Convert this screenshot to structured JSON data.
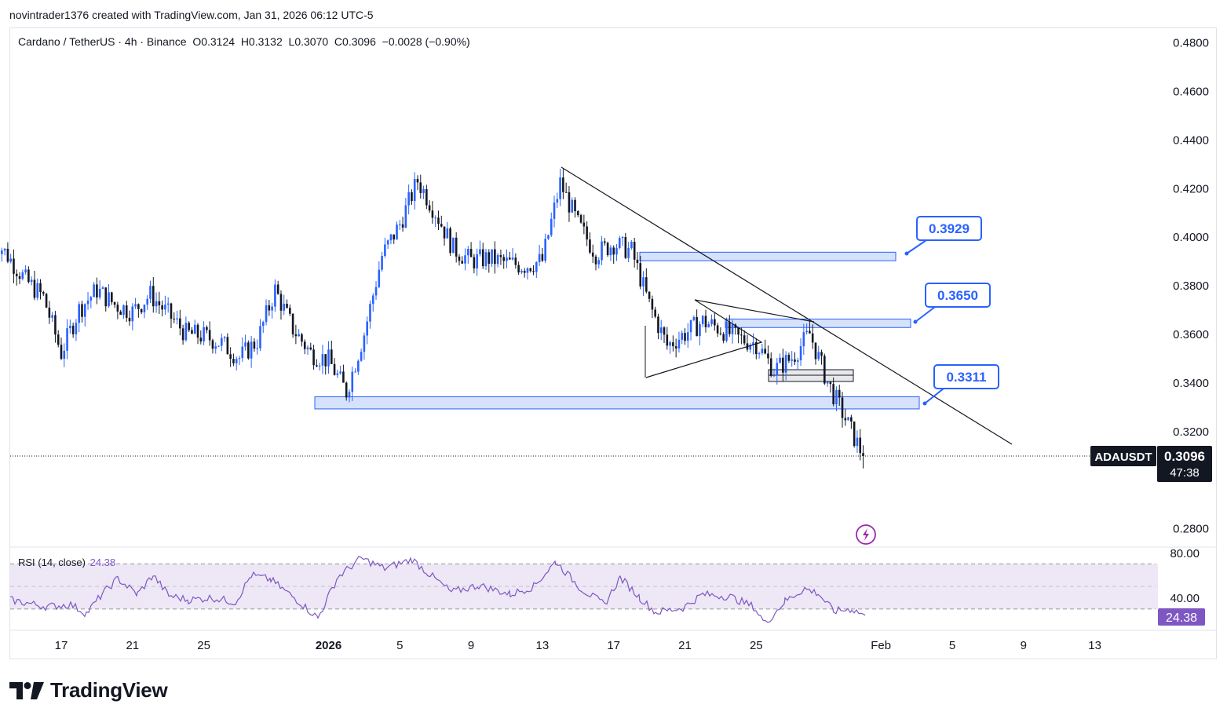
{
  "header": {
    "attribution": "novintrader1376 created with TradingView.com, Jan 31, 2026 06:12 UTC-5"
  },
  "legend": {
    "symbol_line": "Cardano / TetherUS · 4h · Binance",
    "open": "O0.3124",
    "high": "H0.3132",
    "low": "L0.3070",
    "close": "C0.3096",
    "change": "−0.0028 (−0.90%)"
  },
  "rsi_legend": {
    "label": "RSI (14, close)",
    "value": "24.38"
  },
  "price_axis": {
    "ticks": [
      "0.4800",
      "0.4600",
      "0.4400",
      "0.4200",
      "0.4000",
      "0.3800",
      "0.3600",
      "0.3400",
      "0.3200",
      "0.2800"
    ]
  },
  "rsi_axis": {
    "ticks": [
      "80.00",
      "40.00"
    ]
  },
  "time_axis": {
    "ticks": [
      "17",
      "21",
      "25",
      "2026",
      "5",
      "9",
      "13",
      "17",
      "21",
      "25",
      "Feb",
      "5",
      "9",
      "13"
    ]
  },
  "price_tag": {
    "symbol": "ADAUSDT",
    "price": "0.3096",
    "countdown": "47:38"
  },
  "rsi_tag": "24.38",
  "callouts": [
    "0.3929",
    "0.3650",
    "0.3311"
  ],
  "colors": {
    "up": "#2962ff",
    "down": "#131722",
    "zone_fill": "#d6e2fb",
    "zone_border": "#2962ff",
    "rsi_line": "#7e57c2",
    "rsi_band": "#ede7f6"
  },
  "chart_data": {
    "type": "candlestick",
    "symbol": "ADAUSDT",
    "interval": "4h",
    "x_start": "2025-12-13",
    "x_end": "2026-02-13",
    "ylim": [
      0.27,
      0.485
    ],
    "close_series": [
      [
        "2025-12-13",
        0.401
      ],
      [
        "2025-12-14",
        0.392
      ],
      [
        "2025-12-15",
        0.382
      ],
      [
        "2025-12-16",
        0.375
      ],
      [
        "2025-12-17",
        0.352
      ],
      [
        "2025-12-18",
        0.37
      ],
      [
        "2025-12-19",
        0.378
      ],
      [
        "2025-12-20",
        0.372
      ],
      [
        "2025-12-21",
        0.369
      ],
      [
        "2025-12-22",
        0.376
      ],
      [
        "2025-12-23",
        0.368
      ],
      [
        "2025-12-24",
        0.36
      ],
      [
        "2025-12-25",
        0.359
      ],
      [
        "2025-12-26",
        0.356
      ],
      [
        "2025-12-27",
        0.35
      ],
      [
        "2025-12-28",
        0.357
      ],
      [
        "2025-12-29",
        0.378
      ],
      [
        "2025-12-30",
        0.362
      ],
      [
        "2025-12-31",
        0.352
      ],
      [
        "2026-01-01",
        0.349
      ],
      [
        "2026-01-02",
        0.336
      ],
      [
        "2026-01-03",
        0.36
      ],
      [
        "2026-01-04",
        0.392
      ],
      [
        "2026-01-05",
        0.405
      ],
      [
        "2026-01-06",
        0.423
      ],
      [
        "2026-01-07",
        0.41
      ],
      [
        "2026-01-08",
        0.395
      ],
      [
        "2026-01-09",
        0.39
      ],
      [
        "2026-01-10",
        0.391
      ],
      [
        "2026-01-11",
        0.389
      ],
      [
        "2026-01-12",
        0.388
      ],
      [
        "2026-01-13",
        0.39
      ],
      [
        "2026-01-14",
        0.422
      ],
      [
        "2026-01-15",
        0.405
      ],
      [
        "2026-01-16",
        0.393
      ],
      [
        "2026-01-17",
        0.397
      ],
      [
        "2026-01-18",
        0.394
      ],
      [
        "2026-01-19",
        0.372
      ],
      [
        "2026-01-20",
        0.355
      ],
      [
        "2026-01-21",
        0.36
      ],
      [
        "2026-01-22",
        0.365
      ],
      [
        "2026-01-23",
        0.362
      ],
      [
        "2026-01-24",
        0.358
      ],
      [
        "2026-01-25",
        0.356
      ],
      [
        "2026-01-26",
        0.345
      ],
      [
        "2026-01-27",
        0.35
      ],
      [
        "2026-01-28",
        0.36
      ],
      [
        "2026-01-29",
        0.34
      ],
      [
        "2026-01-30",
        0.325
      ],
      [
        "2026-01-31",
        0.3096
      ]
    ],
    "zones": [
      {
        "name": "0.3929",
        "top": 0.3935,
        "bottom": 0.39
      },
      {
        "name": "0.3650",
        "top": 0.366,
        "bottom": 0.3625
      },
      {
        "name": "0.3311",
        "top": 0.334,
        "bottom": 0.329
      }
    ],
    "rsi": {
      "period": 14,
      "ylim": [
        5,
        100
      ],
      "last": 24.38
    }
  }
}
